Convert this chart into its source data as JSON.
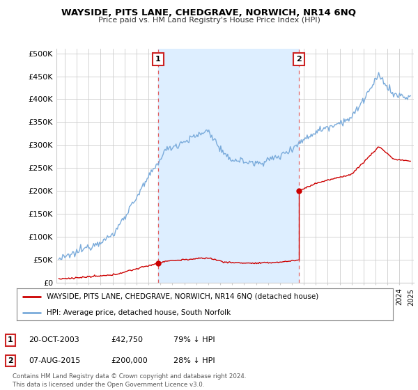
{
  "title": "WAYSIDE, PITS LANE, CHEDGRAVE, NORWICH, NR14 6NQ",
  "subtitle": "Price paid vs. HM Land Registry's House Price Index (HPI)",
  "ylabel_ticks": [
    "£0",
    "£50K",
    "£100K",
    "£150K",
    "£200K",
    "£250K",
    "£300K",
    "£350K",
    "£400K",
    "£450K",
    "£500K"
  ],
  "ytick_values": [
    0,
    50000,
    100000,
    150000,
    200000,
    250000,
    300000,
    350000,
    400000,
    450000,
    500000
  ],
  "ylim": [
    0,
    510000
  ],
  "xlim_start": 1995.3,
  "xlim_end": 2025.2,
  "sale1_date": 2003.8,
  "sale1_price": 42750,
  "sale1_label": "1",
  "sale2_date": 2015.58,
  "sale2_price": 200000,
  "sale2_label": "2",
  "hpi_color": "#7aabdb",
  "hpi_fill_color": "#ddeeff",
  "price_color": "#cc0000",
  "dashed_line_color": "#e06060",
  "annotation_box_color": "#cc2222",
  "legend_label1": "WAYSIDE, PITS LANE, CHEDGRAVE, NORWICH, NR14 6NQ (detached house)",
  "legend_label2": "HPI: Average price, detached house, South Norfolk",
  "table_row1": [
    "1",
    "20-OCT-2003",
    "£42,750",
    "79% ↓ HPI"
  ],
  "table_row2": [
    "2",
    "07-AUG-2015",
    "£200,000",
    "28% ↓ HPI"
  ],
  "footer": "Contains HM Land Registry data © Crown copyright and database right 2024.\nThis data is licensed under the Open Government Licence v3.0.",
  "bg_color": "#ffffff",
  "grid_color": "#cccccc"
}
